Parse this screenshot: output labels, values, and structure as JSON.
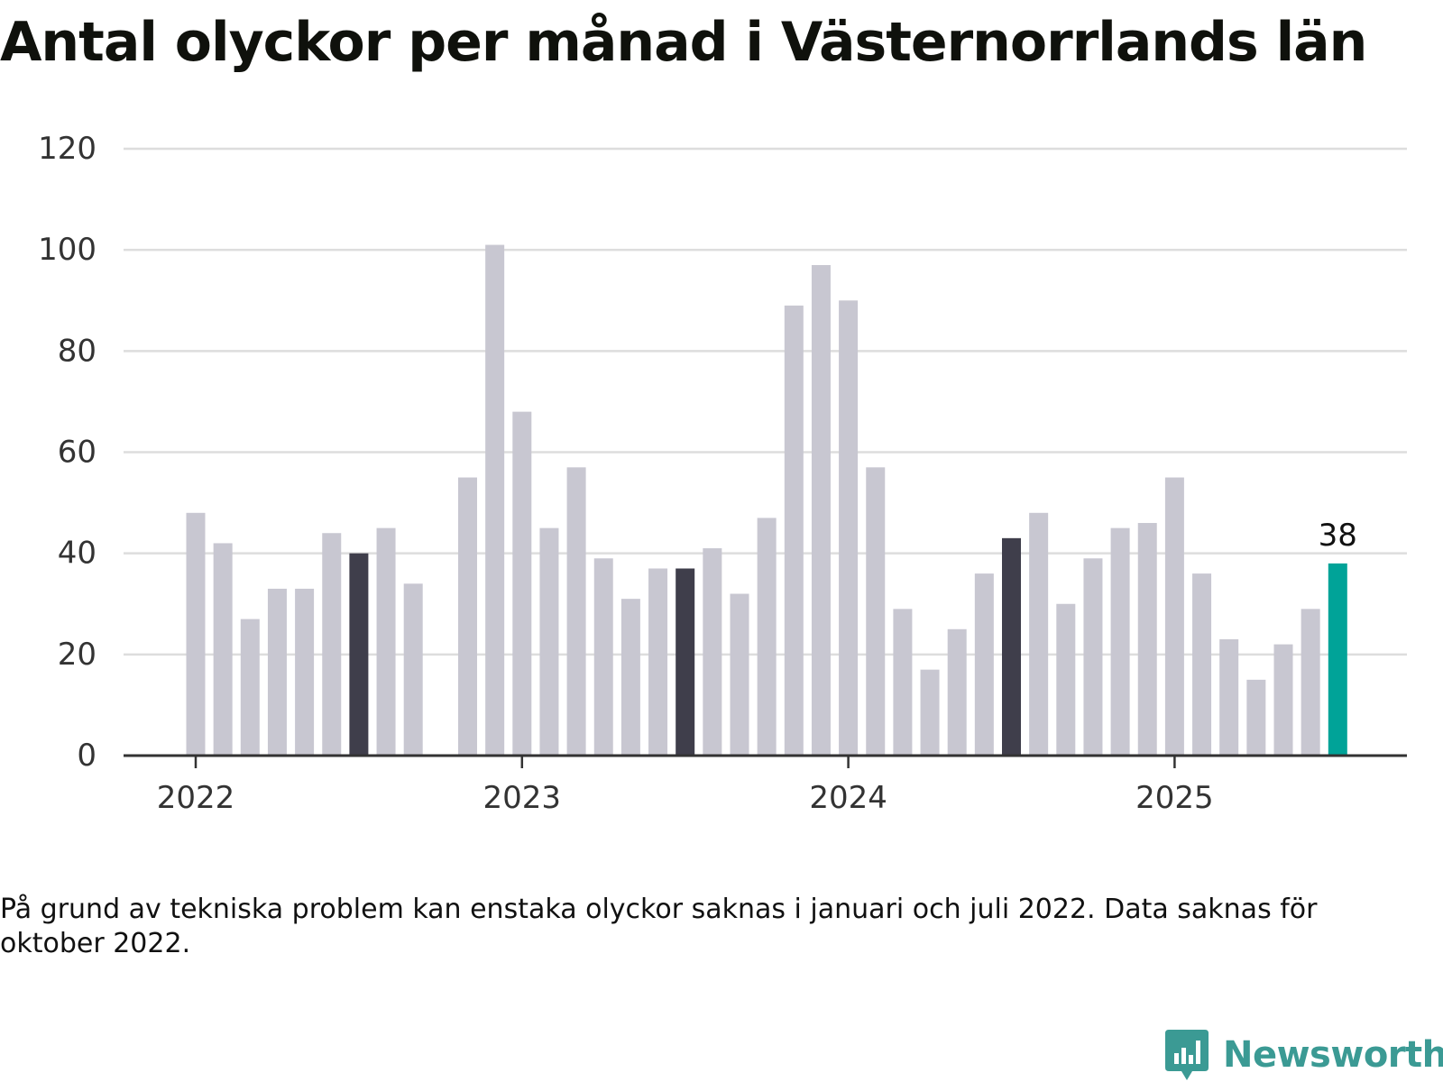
{
  "chart_data": {
    "type": "bar",
    "title": "Antal olyckor per månad i Västernorrlands län",
    "note": "På grund av tekniska problem kan enstaka olyckor saknas i januari och juli 2022. Data saknas för oktober 2022.",
    "ylim": [
      0,
      120
    ],
    "yticks": [
      "0",
      "20",
      "40",
      "60",
      "80",
      "100",
      "120"
    ],
    "xticks": [
      "2022",
      "2023",
      "2024",
      "2025"
    ],
    "grid": true,
    "series": [
      {
        "values": [
          48,
          42,
          27,
          33,
          33,
          44,
          40,
          45,
          34,
          null,
          55,
          101,
          68,
          45,
          57,
          39,
          31,
          37,
          37,
          41,
          32,
          47,
          89,
          97,
          90,
          57,
          29,
          17,
          25,
          36,
          43,
          48,
          30,
          39,
          45,
          46,
          55,
          36,
          23,
          15,
          22,
          29,
          38
        ]
      }
    ],
    "highlighted_months": [
      6,
      18,
      30
    ],
    "latest_value_label": "38",
    "colors": {
      "default": "#c8c7d1",
      "july": "#3f3e4b",
      "latest": "#00a398",
      "grid": "#dddddd",
      "axis": "#333333"
    }
  },
  "brand": {
    "name": "Newsworthy",
    "icon": "newsworthy-logo-icon",
    "color": "#3b9a94"
  }
}
